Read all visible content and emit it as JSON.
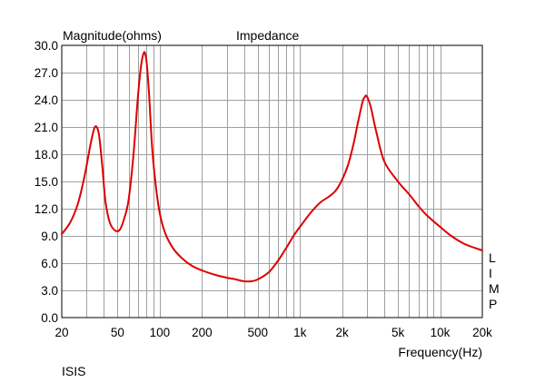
{
  "chart_data": {
    "type": "line",
    "title": "Impedance",
    "ylabel": "Magnitude(ohms)",
    "xlabel": "Frequency(Hz)",
    "x_scale": "log",
    "xlim": [
      20,
      20000
    ],
    "ylim": [
      0,
      30
    ],
    "grid": true,
    "x_tick_labels": [
      {
        "value": 20,
        "label": "20"
      },
      {
        "value": 50,
        "label": "50"
      },
      {
        "value": 100,
        "label": "100"
      },
      {
        "value": 200,
        "label": "200"
      },
      {
        "value": 500,
        "label": "500"
      },
      {
        "value": 1000,
        "label": "1k"
      },
      {
        "value": 2000,
        "label": "2k"
      },
      {
        "value": 5000,
        "label": "5k"
      },
      {
        "value": 10000,
        "label": "10k"
      },
      {
        "value": 20000,
        "label": "20k"
      }
    ],
    "y_ticks": [
      0,
      3,
      6,
      9,
      12,
      15,
      18,
      21,
      24,
      27,
      30
    ],
    "y_tick_labels": [
      "0.0",
      "3.0",
      "6.0",
      "9.0",
      "12.0",
      "15.0",
      "18.0",
      "21.0",
      "24.0",
      "27.0",
      "30.0"
    ],
    "series": [
      {
        "color": "#dd0000",
        "x": [
          20,
          23,
          26,
          29,
          32,
          34,
          35.5,
          37,
          39,
          41,
          44,
          48,
          52,
          56,
          60,
          65,
          70,
          74,
          77,
          79,
          81,
          84,
          88,
          93,
          100,
          110,
          125,
          145,
          170,
          200,
          250,
          300,
          350,
          400,
          450,
          500,
          600,
          700,
          800,
          900,
          1000,
          1200,
          1400,
          1600,
          1800,
          2000,
          2200,
          2400,
          2600,
          2800,
          2900,
          3000,
          3200,
          3500,
          4000,
          5000,
          6000,
          7000,
          8000,
          10000,
          12000,
          15000,
          20000
        ],
        "y": [
          9.2,
          10.5,
          12.5,
          15.5,
          19.0,
          20.8,
          21.0,
          20.0,
          16.5,
          12.8,
          10.5,
          9.6,
          9.7,
          11.0,
          13.0,
          18.0,
          24.5,
          28.0,
          29.2,
          29.0,
          27.8,
          24.5,
          19.0,
          15.0,
          11.5,
          9.2,
          7.6,
          6.5,
          5.7,
          5.2,
          4.7,
          4.4,
          4.2,
          4.0,
          4.0,
          4.2,
          5.0,
          6.3,
          7.7,
          9.0,
          10.0,
          11.6,
          12.7,
          13.3,
          14.0,
          15.2,
          16.8,
          19.0,
          21.6,
          23.8,
          24.3,
          24.4,
          23.2,
          20.5,
          17.2,
          15.0,
          13.6,
          12.3,
          11.3,
          10.0,
          9.0,
          8.1,
          7.4
        ]
      }
    ]
  },
  "side_label": "LIMP",
  "footer_label": "ISIS"
}
